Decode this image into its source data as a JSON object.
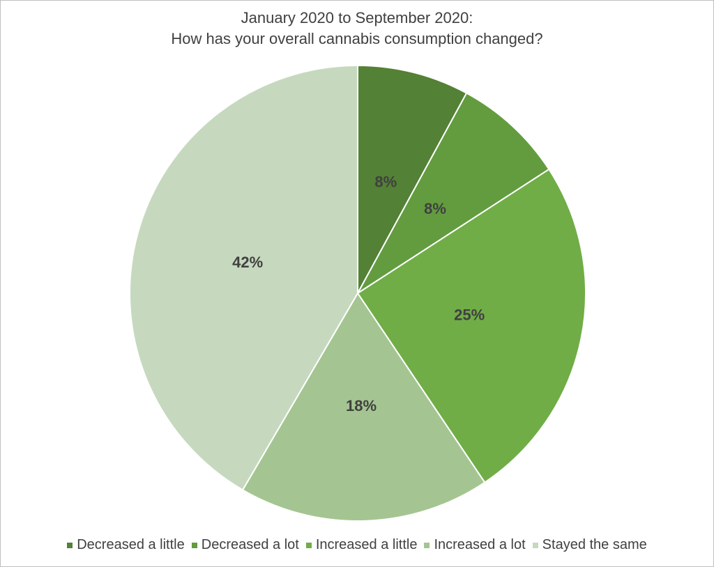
{
  "chart_data": {
    "type": "pie",
    "title": [
      "January 2020 to September 2020:",
      "How has your overall cannabis consumption changed?"
    ],
    "categories": [
      "Decreased a little",
      "Decreased a lot",
      "Increased a little",
      "Increased a lot",
      "Stayed the same"
    ],
    "values": [
      8,
      8,
      25,
      18,
      42
    ],
    "value_labels": [
      "8%",
      "8%",
      "25%",
      "18%",
      "42%"
    ],
    "colors": [
      "#538135",
      "#629c3f",
      "#70ad47",
      "#a4c591",
      "#c6d9bf"
    ],
    "legend": "bottom"
  }
}
